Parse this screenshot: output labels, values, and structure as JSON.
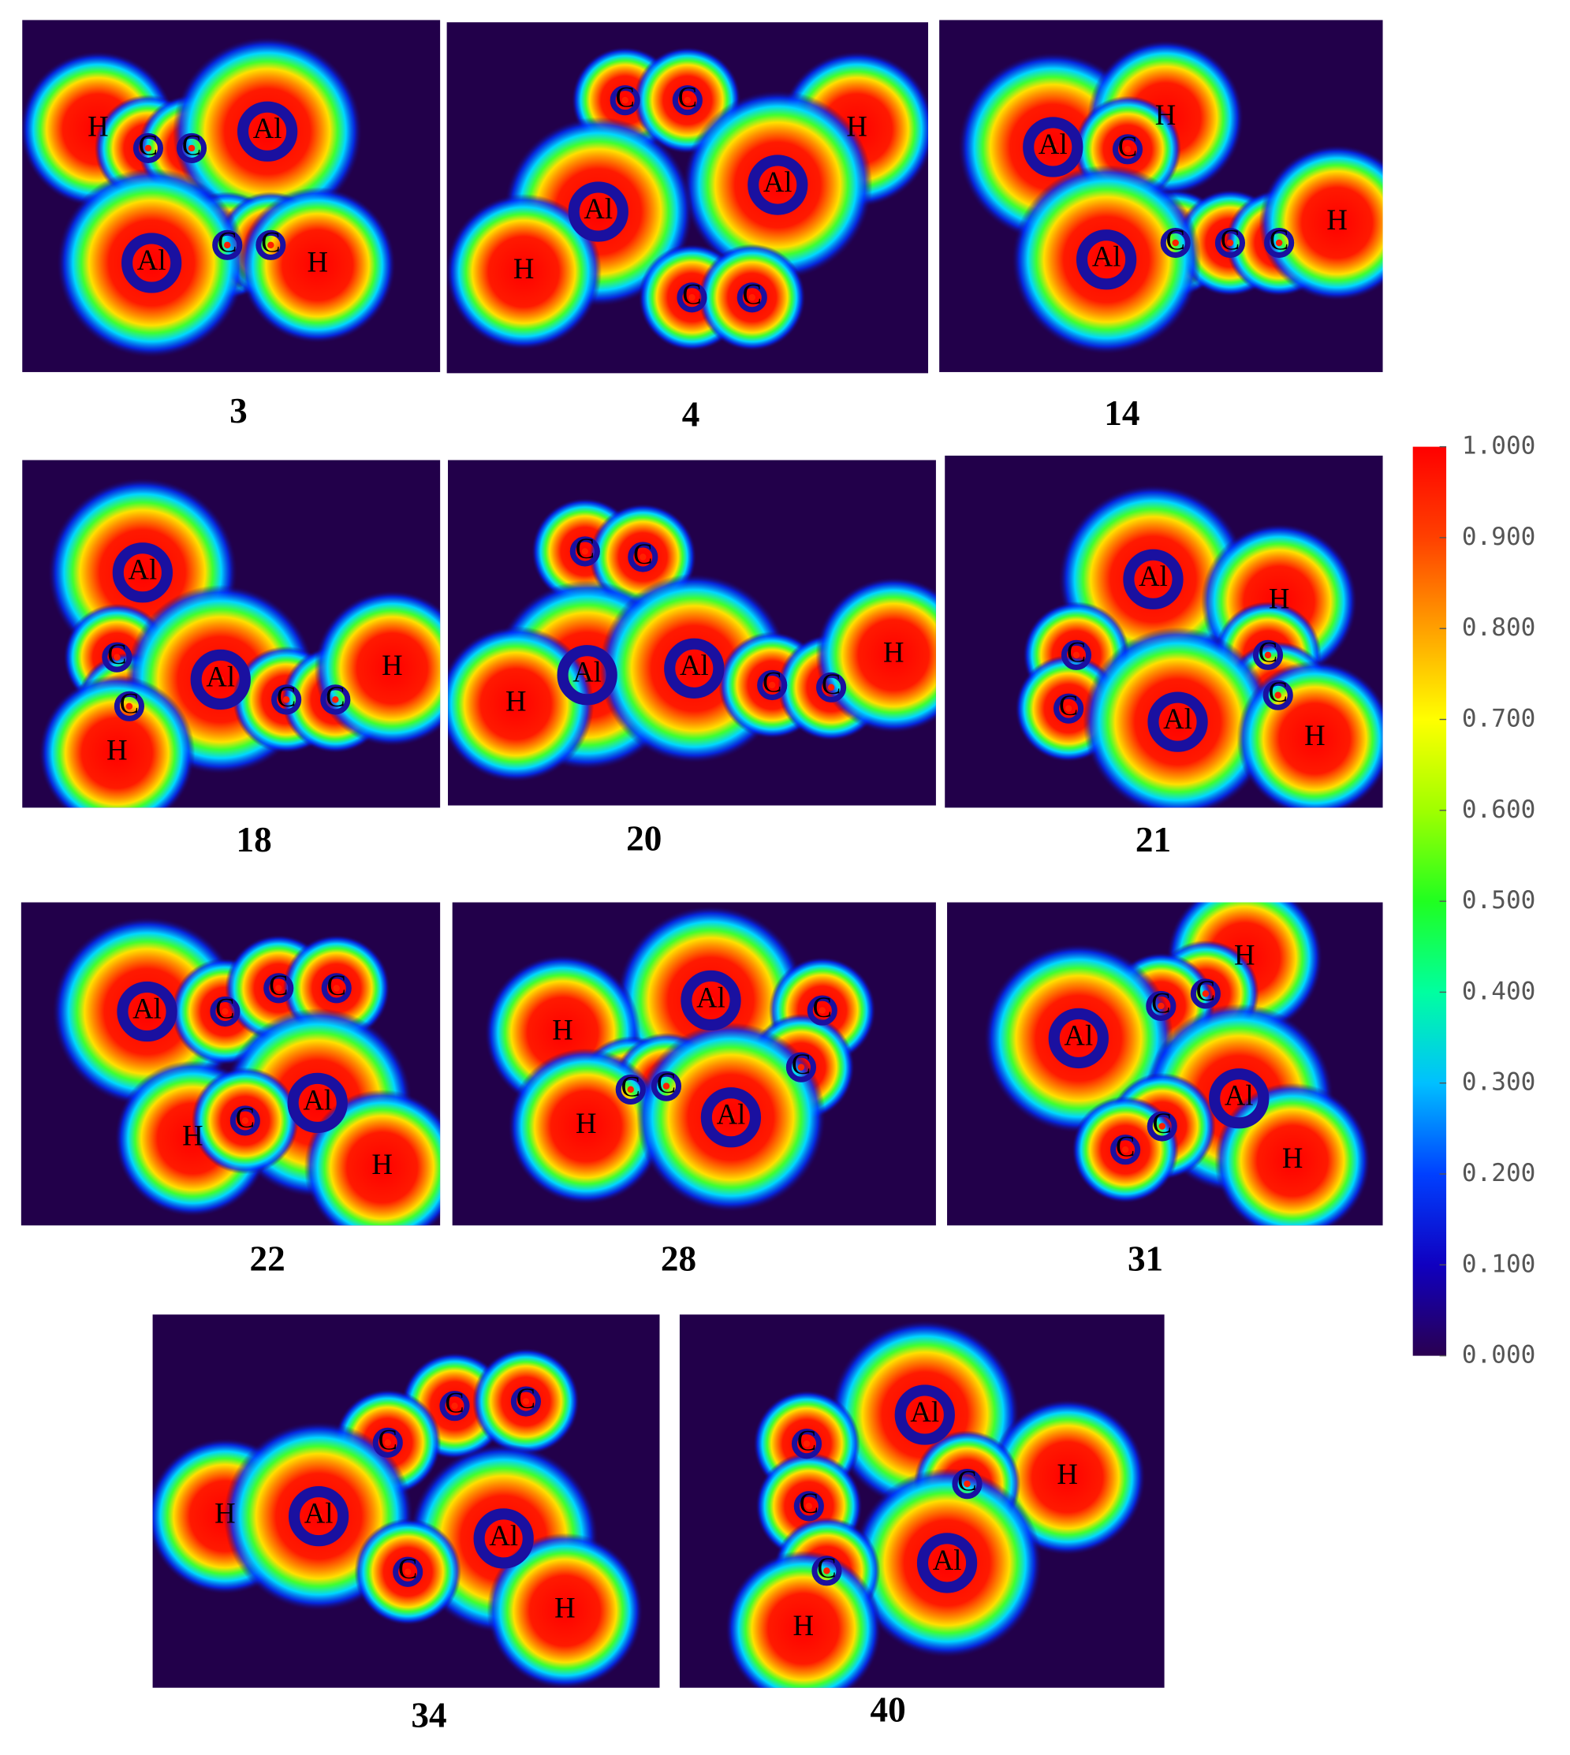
{
  "panels": [
    {
      "label": "3",
      "atoms": [
        "H",
        "C",
        "C",
        "Al",
        "C",
        "C",
        "Al",
        "H"
      ]
    },
    {
      "label": "4",
      "atoms": [
        "C",
        "C",
        "H",
        "Al",
        "Al",
        "H",
        "C",
        "C"
      ]
    },
    {
      "label": "14",
      "atoms": [
        "Al",
        "H",
        "C",
        "C",
        "C",
        "C",
        "H",
        "Al"
      ]
    },
    {
      "label": "18",
      "atoms": [
        "Al",
        "C",
        "C",
        "Al",
        "C",
        "C",
        "H",
        "H"
      ]
    },
    {
      "label": "20",
      "atoms": [
        "C",
        "C",
        "Al",
        "Al",
        "C",
        "C",
        "H",
        "H"
      ]
    },
    {
      "label": "21",
      "atoms": [
        "Al",
        "H",
        "C",
        "C",
        "C",
        "C",
        "Al",
        "H"
      ]
    },
    {
      "label": "22",
      "atoms": [
        "Al",
        "C",
        "C",
        "C",
        "Al",
        "H",
        "C",
        "H"
      ]
    },
    {
      "label": "28",
      "atoms": [
        "Al",
        "C",
        "H",
        "C",
        "C",
        "C",
        "H",
        "Al"
      ]
    },
    {
      "label": "31",
      "atoms": [
        "H",
        "C",
        "C",
        "Al",
        "Al",
        "C",
        "C",
        "H"
      ]
    },
    {
      "label": "34",
      "atoms": [
        "C",
        "C",
        "C",
        "H",
        "Al",
        "Al",
        "C",
        "H"
      ]
    },
    {
      "label": "40",
      "atoms": [
        "Al",
        "C",
        "H",
        "C",
        "C",
        "Al",
        "C",
        "H"
      ]
    }
  ],
  "colorbar": {
    "ticks": [
      "1.000",
      "0.900",
      "0.800",
      "0.700",
      "0.600",
      "0.500",
      "0.400",
      "0.300",
      "0.200",
      "0.100",
      "0.000"
    ]
  }
}
